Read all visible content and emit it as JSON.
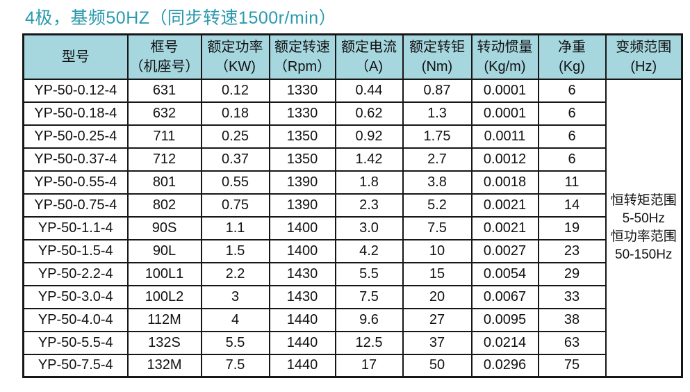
{
  "title": "4极，基频50HZ（同步转速1500r/min）",
  "colors": {
    "title": "#2b9aae",
    "header_bg": "#a6d7df",
    "border": "#161616"
  },
  "table": {
    "headers": [
      {
        "key": "model",
        "lines": [
          "型号"
        ]
      },
      {
        "key": "frame",
        "lines": [
          "框号",
          "（机座号）"
        ]
      },
      {
        "key": "power",
        "lines": [
          "额定功率",
          "（KW)"
        ]
      },
      {
        "key": "speed",
        "lines": [
          "额定转速",
          "（Rpm）"
        ]
      },
      {
        "key": "current",
        "lines": [
          "额定电流",
          "（A)"
        ]
      },
      {
        "key": "torque",
        "lines": [
          "额定转钜",
          "(Nm)"
        ]
      },
      {
        "key": "inertia",
        "lines": [
          "转动惯量",
          "(Kg/m)"
        ]
      },
      {
        "key": "weight",
        "lines": [
          "净重",
          "(Kg)"
        ]
      },
      {
        "key": "freq_range",
        "lines": [
          "变频范围",
          "(Hz)"
        ]
      }
    ],
    "rows": [
      [
        "YP-50-0.12-4",
        "631",
        "0.12",
        "1330",
        "0.44",
        "0.87",
        "0.0001",
        "6"
      ],
      [
        "YP-50-0.18-4",
        "632",
        "0.18",
        "1330",
        "0.62",
        "1.3",
        "0.0001",
        "6"
      ],
      [
        "YP-50-0.25-4",
        "711",
        "0.25",
        "1350",
        "0.92",
        "1.75",
        "0.0011",
        "6"
      ],
      [
        "YP-50-0.37-4",
        "712",
        "0.37",
        "1350",
        "1.42",
        "2.7",
        "0.0012",
        "6"
      ],
      [
        "YP-50-0.55-4",
        "801",
        "0.55",
        "1390",
        "1.8",
        "3.8",
        "0.0018",
        "11"
      ],
      [
        "YP-50-0.75-4",
        "802",
        "0.75",
        "1390",
        "2.3",
        "5.2",
        "0.0021",
        "14"
      ],
      [
        "YP-50-1.1-4",
        "90S",
        "1.1",
        "1400",
        "3.0",
        "7.5",
        "0.0021",
        "19"
      ],
      [
        "YP-50-1.5-4",
        "90L",
        "1.5",
        "1400",
        "4.2",
        "10",
        "0.0027",
        "23"
      ],
      [
        "YP-50-2.2-4",
        "100L1",
        "2.2",
        "1430",
        "5.5",
        "15",
        "0.0054",
        "29"
      ],
      [
        "YP-50-3.0-4",
        "100L2",
        "3",
        "1430",
        "7.5",
        "20",
        "0.0067",
        "33"
      ],
      [
        "YP-50-4.0-4",
        "112M",
        "4",
        "1440",
        "9.6",
        "27",
        "0.0095",
        "38"
      ],
      [
        "YP-50-5.5-4",
        "132S",
        "5.5",
        "1440",
        "12.5",
        "37",
        "0.0214",
        "63"
      ],
      [
        "YP-50-7.5-4",
        "132M",
        "7.5",
        "1440",
        "17",
        "50",
        "0.0296",
        "75"
      ]
    ],
    "freq_range_note": [
      "恒转矩范围",
      "5-50Hz",
      "恒功率范围",
      "50-150Hz"
    ]
  }
}
